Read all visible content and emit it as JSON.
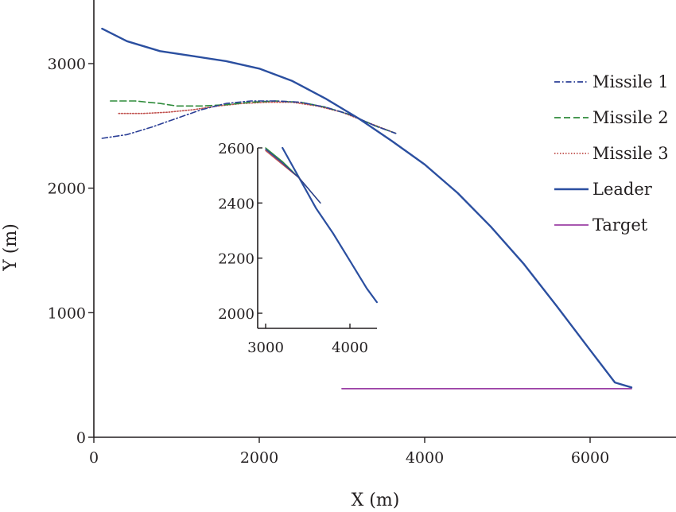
{
  "chart_data": {
    "type": "line",
    "xlabel": "X (m)",
    "ylabel": "Y (m)",
    "xlim": [
      -50,
      7000
    ],
    "ylim": [
      0,
      3500
    ],
    "xticks": [
      0,
      2000,
      4000,
      6000
    ],
    "yticks": [
      0,
      1000,
      2000,
      3000
    ],
    "grid": false,
    "legend_position": "right",
    "series": [
      {
        "name": "Missile 1",
        "style": "dash-dot",
        "color": "#2b3f96",
        "x": [
          100,
          400,
          700,
          1000,
          1300,
          1600,
          1900,
          2200,
          2500,
          2800,
          3100,
          3400,
          3650
        ],
        "y": [
          2400,
          2430,
          2490,
          2560,
          2630,
          2680,
          2700,
          2700,
          2690,
          2650,
          2590,
          2500,
          2440
        ]
      },
      {
        "name": "Missile 2",
        "style": "dashed",
        "color": "#2e8b3a",
        "x": [
          200,
          500,
          800,
          1000,
          1300,
          1600,
          1900,
          2200,
          2500,
          2800,
          3100,
          3400,
          3650
        ],
        "y": [
          2700,
          2700,
          2680,
          2660,
          2660,
          2670,
          2690,
          2700,
          2690,
          2650,
          2590,
          2500,
          2440
        ]
      },
      {
        "name": "Missile 3",
        "style": "dotted",
        "color": "#c0504d",
        "x": [
          300,
          600,
          900,
          1200,
          1500,
          1800,
          2100,
          2400,
          2700,
          3000,
          3300,
          3650
        ],
        "y": [
          2600,
          2600,
          2610,
          2630,
          2660,
          2680,
          2690,
          2690,
          2660,
          2610,
          2530,
          2440
        ]
      },
      {
        "name": "Leader",
        "style": "solid",
        "color": "#2b4fa0",
        "x": [
          100,
          400,
          800,
          1200,
          1600,
          2000,
          2400,
          2800,
          3200,
          3600,
          4000,
          4400,
          4800,
          5200,
          5600,
          6000,
          6300,
          6500
        ],
        "y": [
          3280,
          3180,
          3100,
          3060,
          3020,
          2960,
          2860,
          2720,
          2560,
          2380,
          2190,
          1960,
          1690,
          1390,
          1050,
          700,
          440,
          400
        ]
      },
      {
        "name": "Target",
        "style": "solid",
        "color": "#9b3fa5",
        "x": [
          3000,
          6500
        ],
        "y": [
          390,
          390
        ]
      }
    ],
    "inset": {
      "xlim": [
        2900,
        4300
      ],
      "ylim": [
        1960,
        2600
      ],
      "xticks": [
        3000,
        4000
      ],
      "yticks": [
        2000,
        2200,
        2400,
        2600
      ],
      "series": [
        {
          "name": "Leader",
          "color": "#2b4fa0",
          "x": [
            3200,
            3400,
            3600,
            3800,
            4000,
            4200,
            4320
          ],
          "y": [
            2600,
            2490,
            2380,
            2290,
            2190,
            2090,
            2040
          ]
        },
        {
          "name": "Missile 3",
          "color": "#c0504d",
          "x": [
            3000,
            3200,
            3400,
            3650
          ],
          "y": [
            2590,
            2540,
            2490,
            2400
          ]
        },
        {
          "name": "Missile 2",
          "color": "#2e8b3a",
          "x": [
            3000,
            3200,
            3400,
            3650
          ],
          "y": [
            2600,
            2550,
            2490,
            2400
          ]
        },
        {
          "name": "Missile 1",
          "color": "#2b3f96",
          "x": [
            3000,
            3200,
            3400,
            3650
          ],
          "y": [
            2595,
            2545,
            2490,
            2400
          ]
        }
      ]
    }
  },
  "colors": {
    "axis": "#231f20"
  }
}
